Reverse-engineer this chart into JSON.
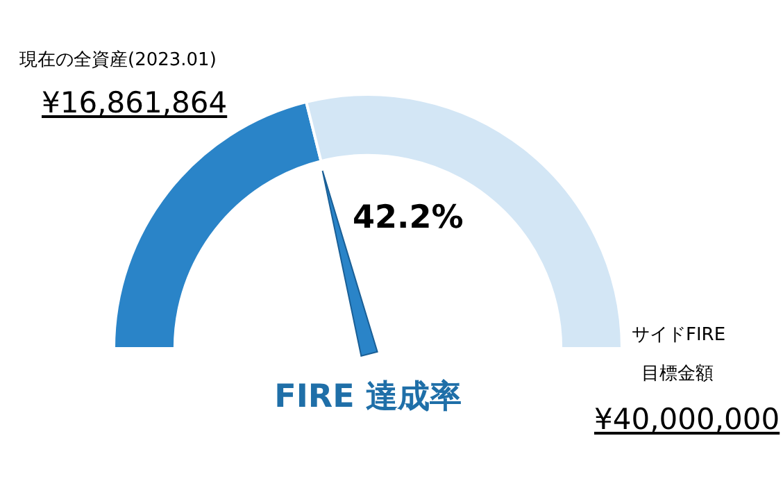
{
  "chart_data": {
    "type": "donut",
    "title": "FIRE 達成率",
    "categories": [
      "現在の全資産(2023.01)",
      null
    ],
    "values": [
      42.2,
      57.8
    ],
    "colors": [
      "#2a84c8",
      "#d3e6f5"
    ],
    "needle": "現在の全資産(2023.01)",
    "annotations": [
      "¥16,861,864",
      "42.2%",
      "サイドFIRE",
      "目標金額",
      "¥40,000,000"
    ]
  }
}
